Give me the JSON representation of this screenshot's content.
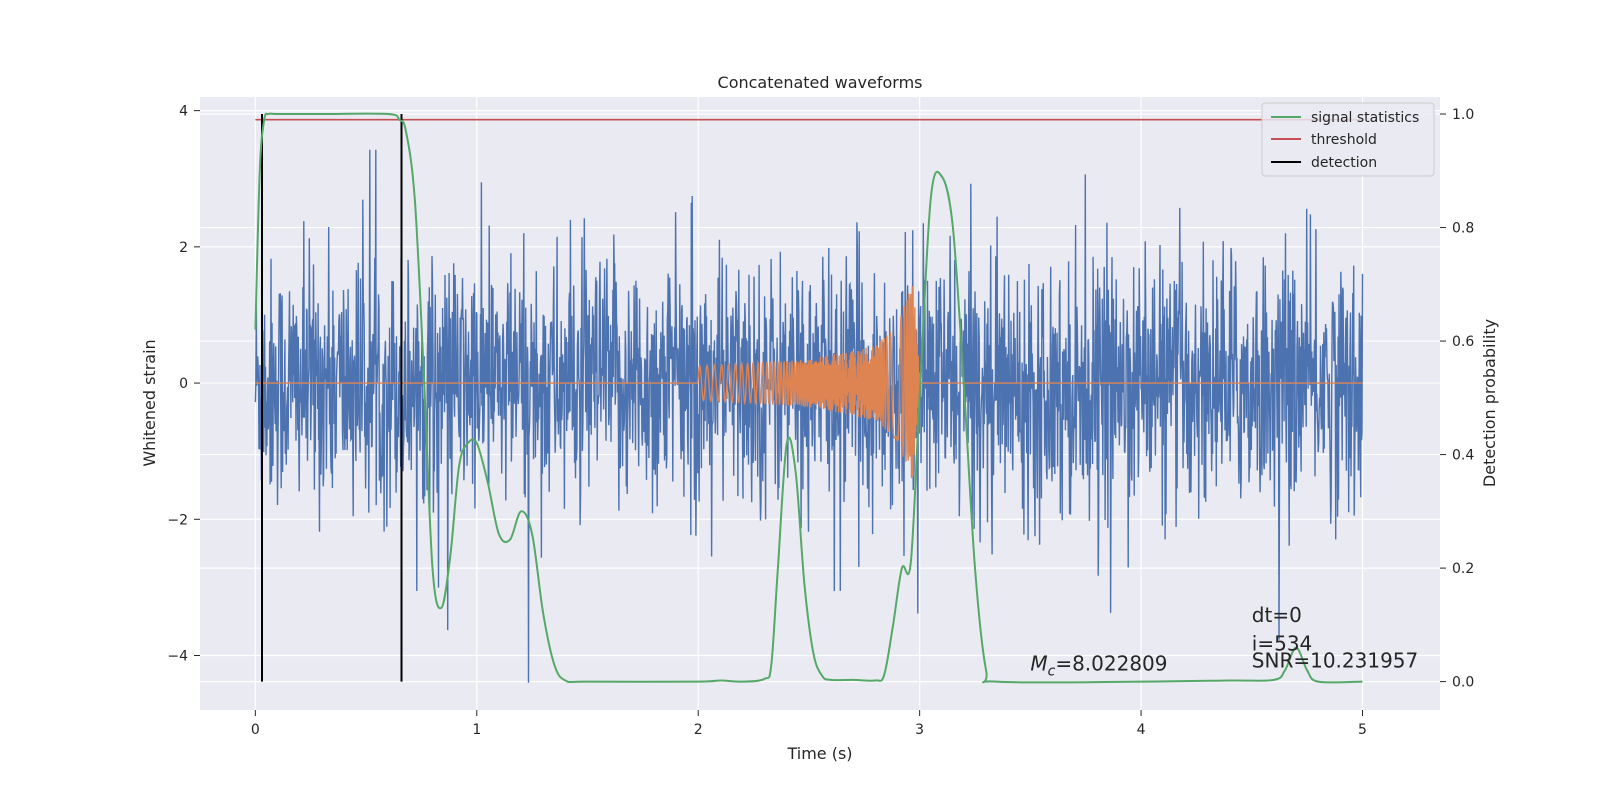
{
  "chart_data": {
    "type": "line",
    "title": "Concatenated waveforms",
    "xlabel": "Time (s)",
    "ylabel": "Whitened strain",
    "y2label": "Detection probability",
    "xlim": [
      -0.25,
      5.35
    ],
    "ylim": [
      -4.8,
      4.2
    ],
    "y2lim": [
      -0.05,
      1.03
    ],
    "xticks": [
      0,
      1,
      2,
      3,
      4,
      5
    ],
    "yticks": [
      -4,
      -2,
      0,
      2,
      4
    ],
    "y2ticks": [
      0.0,
      0.2,
      0.4,
      0.6,
      0.8,
      1.0
    ],
    "grid": true,
    "legend_placement": "upper right",
    "series": [
      {
        "name": "signal statistics",
        "color": "#55a868",
        "axis": "right",
        "x": [
          0.0,
          0.02,
          0.04,
          0.06,
          0.1,
          0.3,
          0.6,
          0.65,
          0.68,
          0.72,
          0.76,
          0.8,
          0.84,
          0.88,
          0.92,
          0.96,
          1.0,
          1.05,
          1.1,
          1.15,
          1.2,
          1.25,
          1.3,
          1.35,
          1.4,
          1.5,
          2.0,
          2.1,
          2.2,
          2.3,
          2.33,
          2.36,
          2.4,
          2.44,
          2.48,
          2.52,
          2.56,
          2.6,
          2.7,
          2.8,
          2.84,
          2.88,
          2.92,
          2.96,
          3.0,
          3.05,
          3.1,
          3.15,
          3.2,
          3.25,
          3.3,
          3.35,
          4.0,
          4.4,
          4.6,
          4.65,
          4.7,
          4.75,
          4.8,
          5.0
        ],
        "y": [
          0.62,
          0.9,
          0.99,
          1.0,
          1.0,
          1.0,
          1.0,
          0.99,
          0.97,
          0.85,
          0.55,
          0.2,
          0.13,
          0.22,
          0.38,
          0.42,
          0.42,
          0.35,
          0.26,
          0.25,
          0.3,
          0.26,
          0.12,
          0.03,
          0.002,
          0.0,
          0.0,
          0.002,
          0.0,
          0.005,
          0.03,
          0.2,
          0.42,
          0.37,
          0.17,
          0.05,
          0.01,
          0.003,
          0.003,
          0.002,
          0.012,
          0.1,
          0.2,
          0.21,
          0.5,
          0.85,
          0.89,
          0.8,
          0.52,
          0.2,
          0.02,
          0.0,
          0.0,
          0.002,
          0.003,
          0.02,
          0.06,
          0.02,
          0.0,
          0.0
        ]
      },
      {
        "name": "threshold",
        "color": "#c44e52",
        "axis": "right",
        "x": [
          0.0,
          5.0
        ],
        "y": [
          0.99,
          0.99
        ]
      },
      {
        "name": "detection",
        "color": "#000000",
        "axis": "right",
        "x": [
          0.03,
          0.66
        ],
        "y": [
          0.0,
          1.0
        ]
      },
      {
        "name": "",
        "color": "#4c72b0",
        "axis": "left",
        "description_free": true,
        "x": [
          0.0,
          5.0
        ],
        "amplitude_scale": 1.0
      },
      {
        "name": "",
        "color": "#dd8452",
        "axis": "left",
        "x": [
          0.0,
          2.0,
          2.5,
          2.8,
          2.9,
          2.97,
          3.0,
          5.0
        ],
        "envelope": [
          0.0,
          0.25,
          0.35,
          0.55,
          0.85,
          1.5,
          0.1,
          0.0
        ]
      }
    ],
    "annotations": [
      {
        "text_prefix": "M",
        "text_sub": "c",
        "text_suffix": "=8.022809",
        "x": 3.5,
        "y_prob": 0.02
      },
      {
        "text": "dt=0",
        "x": 4.5,
        "y_prob": 0.105
      },
      {
        "text": "i=534",
        "x": 4.5,
        "y_prob": 0.055
      },
      {
        "text": "SNR=10.231957",
        "x": 4.5,
        "y_prob": 0.025
      }
    ]
  },
  "colors": {
    "axes_bg": "#eaeaf2",
    "grid": "#ffffff",
    "strain": "#4c72b0",
    "template": "#dd8452",
    "stat": "#55a868",
    "threshold": "#c44e52",
    "detection": "#000000"
  }
}
